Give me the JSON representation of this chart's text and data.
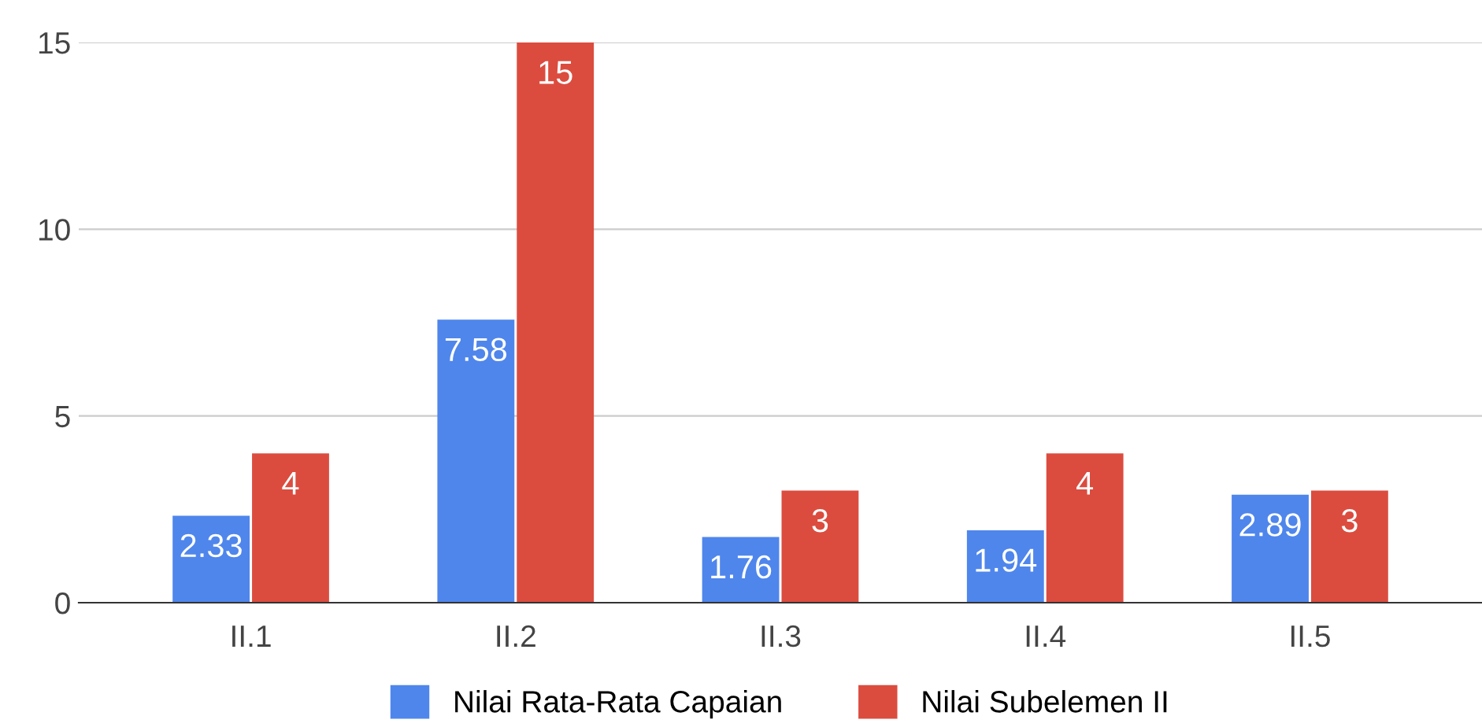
{
  "chart_data": {
    "type": "bar",
    "categories": [
      "II.1",
      "II.2",
      "II.3",
      "II.4",
      "II.5"
    ],
    "series": [
      {
        "name": "Nilai Rata-Rata Capaian",
        "color": "#4f86ec",
        "values": [
          2.33,
          7.58,
          1.76,
          1.94,
          2.89
        ]
      },
      {
        "name": "Nilai Subelemen II",
        "color": "#db4c3f",
        "values": [
          4,
          15,
          3,
          4,
          3
        ]
      }
    ],
    "ylim": [
      0,
      15
    ],
    "yticks": [
      0,
      5,
      10,
      15
    ],
    "grid": "y",
    "legend": "bottom",
    "data_labels": true
  }
}
